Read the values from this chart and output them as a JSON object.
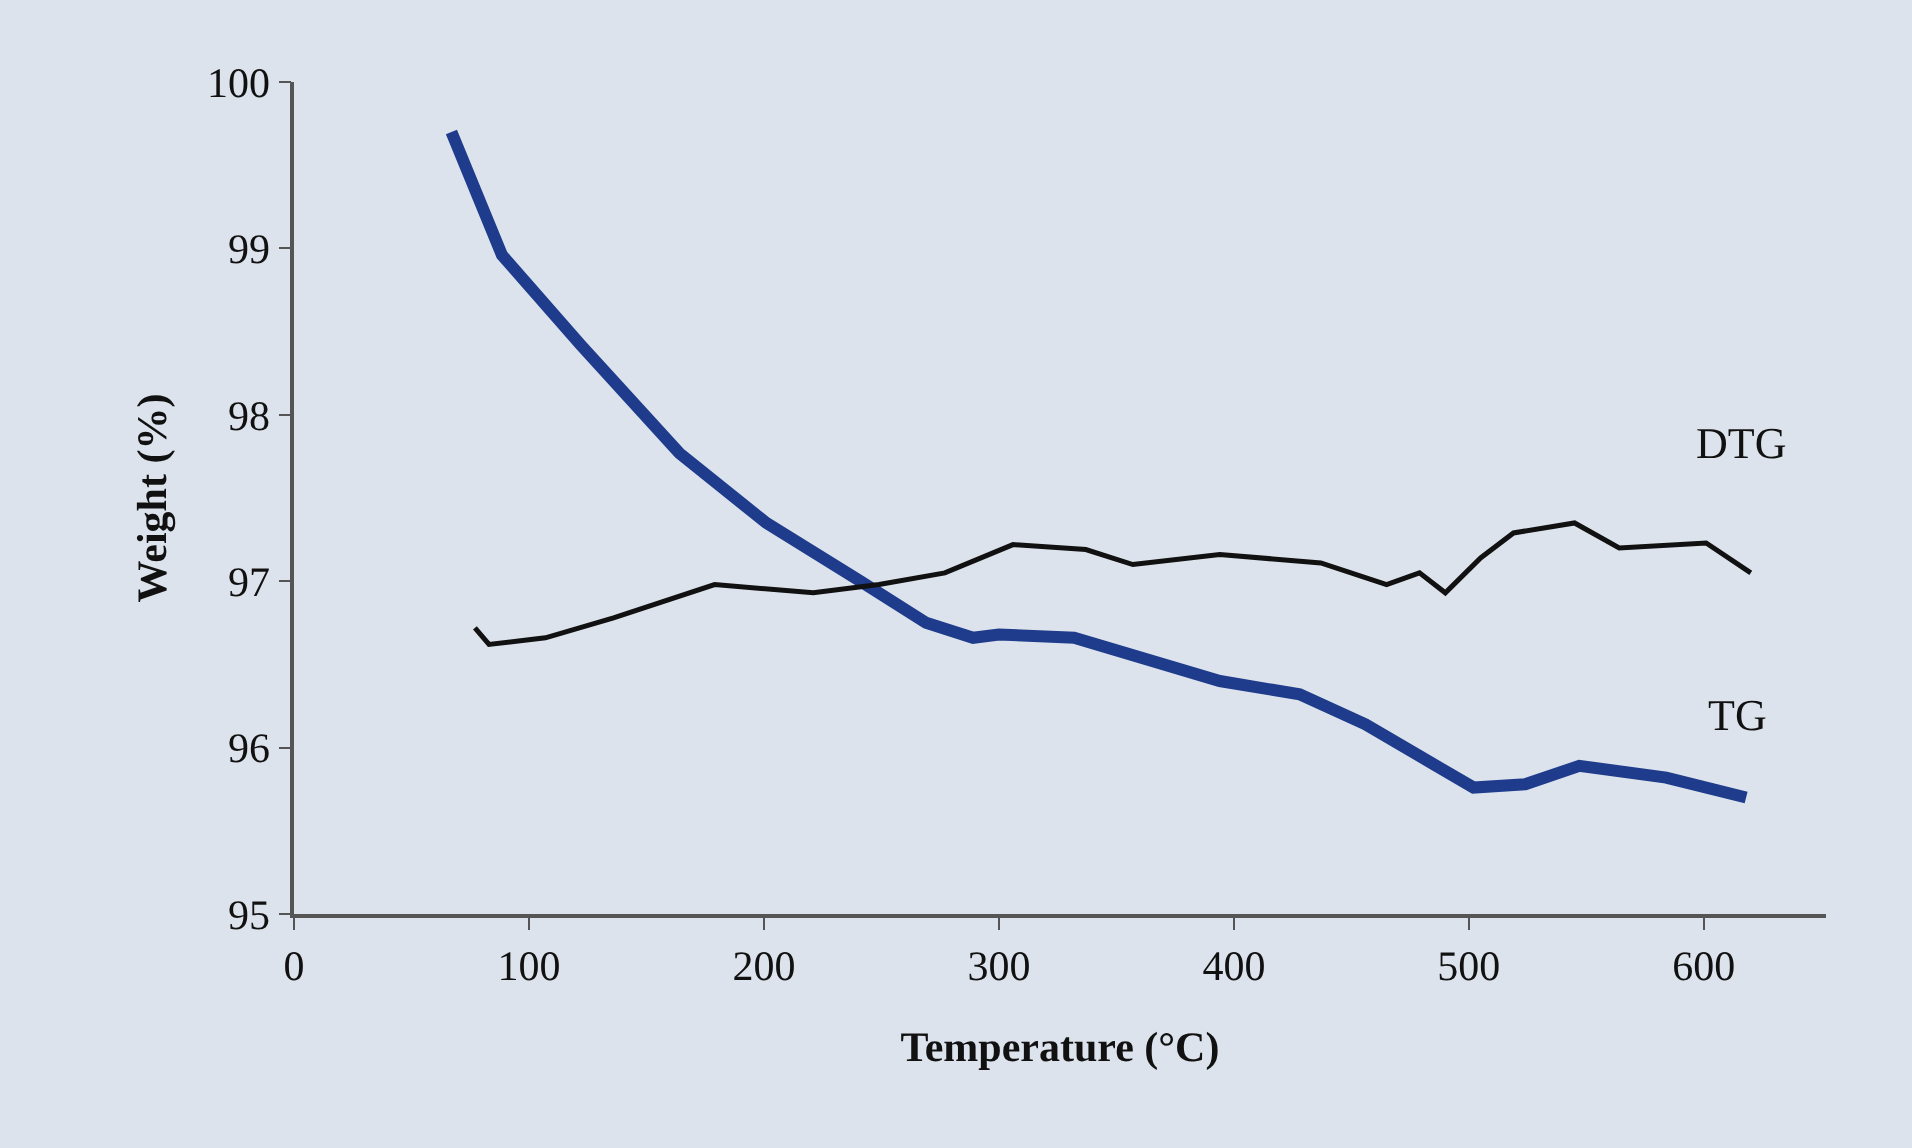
{
  "chart_data": {
    "type": "line",
    "xlabel": "Temperature (°C)",
    "ylabel": "Weight (%)",
    "xlim": [
      0,
      652
    ],
    "xticks": [
      0,
      100,
      200,
      300,
      400,
      500,
      600
    ],
    "ylim": [
      95,
      100
    ],
    "yticks": [
      95,
      96,
      97,
      98,
      99,
      100
    ],
    "grid": false,
    "legend": false,
    "marker": "none",
    "line_style": "solid",
    "series": [
      {
        "name": "TG",
        "color": "#1f3c8c",
        "x": [
          67,
          88.5,
          122,
          164,
          201,
          241,
          269,
          289,
          300,
          332,
          394,
          428,
          456,
          485,
          502,
          524,
          547,
          584,
          618
        ],
        "values": [
          99.7,
          98.96,
          98.42,
          97.77,
          97.35,
          97.0,
          96.75,
          96.66,
          96.68,
          96.66,
          96.4,
          96.32,
          96.14,
          95.9,
          95.76,
          95.78,
          95.89,
          95.82,
          95.7
        ]
      },
      {
        "name": "DTG",
        "color": "#111111",
        "x": [
          77,
          83,
          107,
          136,
          179,
          221,
          249,
          277,
          306,
          337,
          357,
          394,
          437,
          465,
          479,
          490,
          505,
          519,
          545,
          564,
          601,
          620
        ],
        "values": [
          96.72,
          96.62,
          96.66,
          96.78,
          96.98,
          96.93,
          96.98,
          97.05,
          97.22,
          97.19,
          97.1,
          97.16,
          97.11,
          96.98,
          97.05,
          96.93,
          97.14,
          97.29,
          97.35,
          97.2,
          97.23,
          97.05
        ]
      }
    ]
  }
}
